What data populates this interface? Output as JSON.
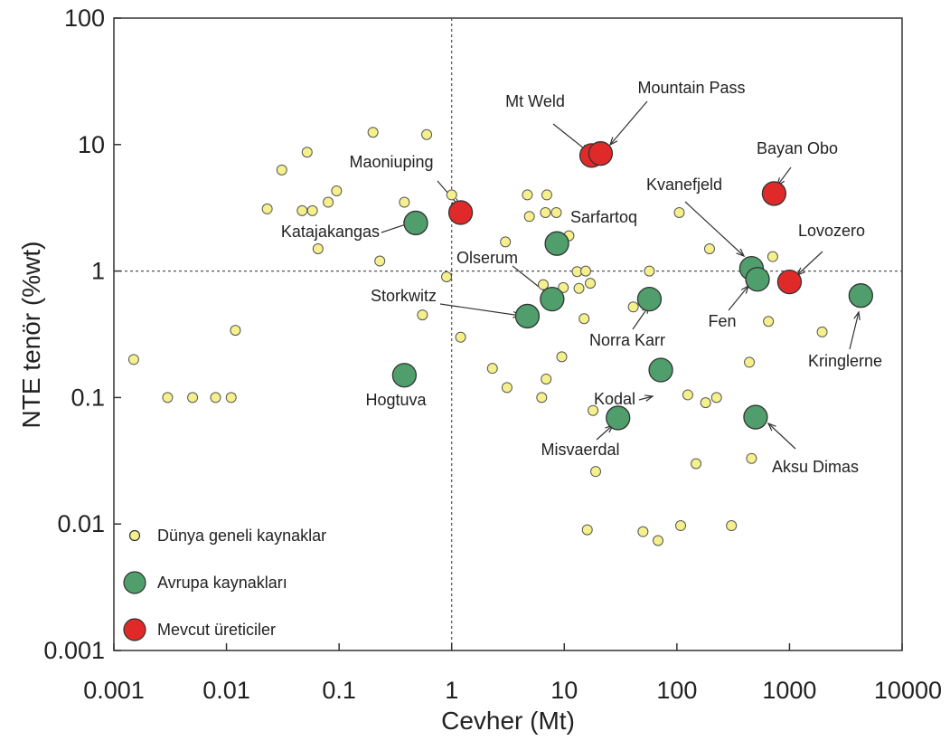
{
  "chart_data": {
    "type": "scatter",
    "xlabel": "Cevher (Mt)",
    "ylabel": "NTE tenör (%wt)",
    "x_scale": "log",
    "y_scale": "log",
    "xlim": [
      0.001,
      10000
    ],
    "ylim": [
      0.001,
      100
    ],
    "grid": false,
    "reference_lines": {
      "x": 1,
      "y": 1
    },
    "x_ticks": [
      {
        "value": 0.001,
        "label": "0.001"
      },
      {
        "value": 0.01,
        "label": "0.01"
      },
      {
        "value": 0.1,
        "label": "0.1"
      },
      {
        "value": 1,
        "label": "1"
      },
      {
        "value": 10,
        "label": "10"
      },
      {
        "value": 100,
        "label": "100"
      },
      {
        "value": 1000,
        "label": "1000"
      },
      {
        "value": 10000,
        "label": "10000"
      }
    ],
    "y_ticks": [
      {
        "value": 0.001,
        "label": "0.001"
      },
      {
        "value": 0.01,
        "label": "0.01"
      },
      {
        "value": 0.1,
        "label": "0.1"
      },
      {
        "value": 1,
        "label": "1"
      },
      {
        "value": 10,
        "label": "10"
      },
      {
        "value": 100,
        "label": "100"
      }
    ],
    "legend_position": "bottom-left",
    "series": [
      {
        "name": "Dünya geneli kaynaklar",
        "color": "#f5f08c",
        "marker": "small-circle",
        "points": [
          [
            0.0015,
            0.2
          ],
          [
            0.003,
            0.1
          ],
          [
            0.005,
            0.1
          ],
          [
            0.008,
            0.1
          ],
          [
            0.011,
            0.1
          ],
          [
            0.012,
            0.34
          ],
          [
            0.023,
            3.1
          ],
          [
            0.031,
            6.3
          ],
          [
            0.047,
            3.0
          ],
          [
            0.052,
            8.7
          ],
          [
            0.058,
            3.0
          ],
          [
            0.065,
            1.5
          ],
          [
            0.08,
            3.5
          ],
          [
            0.095,
            4.3
          ],
          [
            0.2,
            12.5
          ],
          [
            0.23,
            1.2
          ],
          [
            0.38,
            3.5
          ],
          [
            0.55,
            0.45
          ],
          [
            0.6,
            12.0
          ],
          [
            0.9,
            0.9
          ],
          [
            1.0,
            4.0
          ],
          [
            1.2,
            0.3
          ],
          [
            2.3,
            0.17
          ],
          [
            3.0,
            1.7
          ],
          [
            3.1,
            0.12
          ],
          [
            4.7,
            4.0
          ],
          [
            4.9,
            2.7
          ],
          [
            6.3,
            0.1
          ],
          [
            6.5,
            0.78
          ],
          [
            6.8,
            2.9
          ],
          [
            6.9,
            0.14
          ],
          [
            7.0,
            4.0
          ],
          [
            8.5,
            2.9
          ],
          [
            9.5,
            0.21
          ],
          [
            9.8,
            0.74
          ],
          [
            11.0,
            1.9
          ],
          [
            13.0,
            0.99
          ],
          [
            13.5,
            0.73
          ],
          [
            15.0,
            0.42
          ],
          [
            15.5,
            1.0
          ],
          [
            16.0,
            0.009
          ],
          [
            17.0,
            0.8
          ],
          [
            18.0,
            0.079
          ],
          [
            19.0,
            0.026
          ],
          [
            41.0,
            0.52
          ],
          [
            50.0,
            0.0087
          ],
          [
            57.0,
            1.0
          ],
          [
            68.0,
            0.0074
          ],
          [
            105.0,
            2.9
          ],
          [
            108.0,
            0.0097
          ],
          [
            125.0,
            0.105
          ],
          [
            148.0,
            0.03
          ],
          [
            180.0,
            0.091
          ],
          [
            195.0,
            1.5
          ],
          [
            225.0,
            0.1
          ],
          [
            305.0,
            0.0097
          ],
          [
            440.0,
            0.19
          ],
          [
            460.0,
            0.033
          ],
          [
            650.0,
            0.4
          ],
          [
            710.0,
            1.3
          ],
          [
            1950.0,
            0.33
          ]
        ]
      },
      {
        "name": "Avrupa kaynakları",
        "color": "#4f9e6c",
        "marker": "large-circle",
        "points": [
          {
            "label": "Katajakangas",
            "x": 0.48,
            "y": 2.4
          },
          {
            "label": "Sarfartoq",
            "x": 8.6,
            "y": 1.65
          },
          {
            "label": "Olserum",
            "x": 7.8,
            "y": 0.6
          },
          {
            "label": "Storkwitz",
            "x": 4.7,
            "y": 0.44
          },
          {
            "label": "Norra Karr",
            "x": 57.0,
            "y": 0.6
          },
          {
            "label": "Kodal",
            "x": 72.0,
            "y": 0.165
          },
          {
            "label": "Hogtuva",
            "x": 0.38,
            "y": 0.15
          },
          {
            "label": "Misvaerdal",
            "x": 30.0,
            "y": 0.069
          },
          {
            "label": "Kvanefjeld",
            "x": 460.0,
            "y": 1.05
          },
          {
            "label": "Fen",
            "x": 520.0,
            "y": 0.86
          },
          {
            "label": "Kringlerne",
            "x": 4300.0,
            "y": 0.64
          },
          {
            "label": "Aksu Dimas",
            "x": 500.0,
            "y": 0.07
          }
        ]
      },
      {
        "name": "Mevcut üreticiler",
        "color": "#e02a2a",
        "marker": "large-circle",
        "points": [
          {
            "label": "Maoniuping",
            "x": 1.2,
            "y": 2.9
          },
          {
            "label": "Mt Weld",
            "x": 17.5,
            "y": 8.2
          },
          {
            "label": "Mountain Pass",
            "x": 21.0,
            "y": 8.5
          },
          {
            "label": "Bayan Obo",
            "x": 730.0,
            "y": 4.1
          },
          {
            "label": "Lovozero",
            "x": 1000.0,
            "y": 0.82
          }
        ]
      }
    ]
  }
}
